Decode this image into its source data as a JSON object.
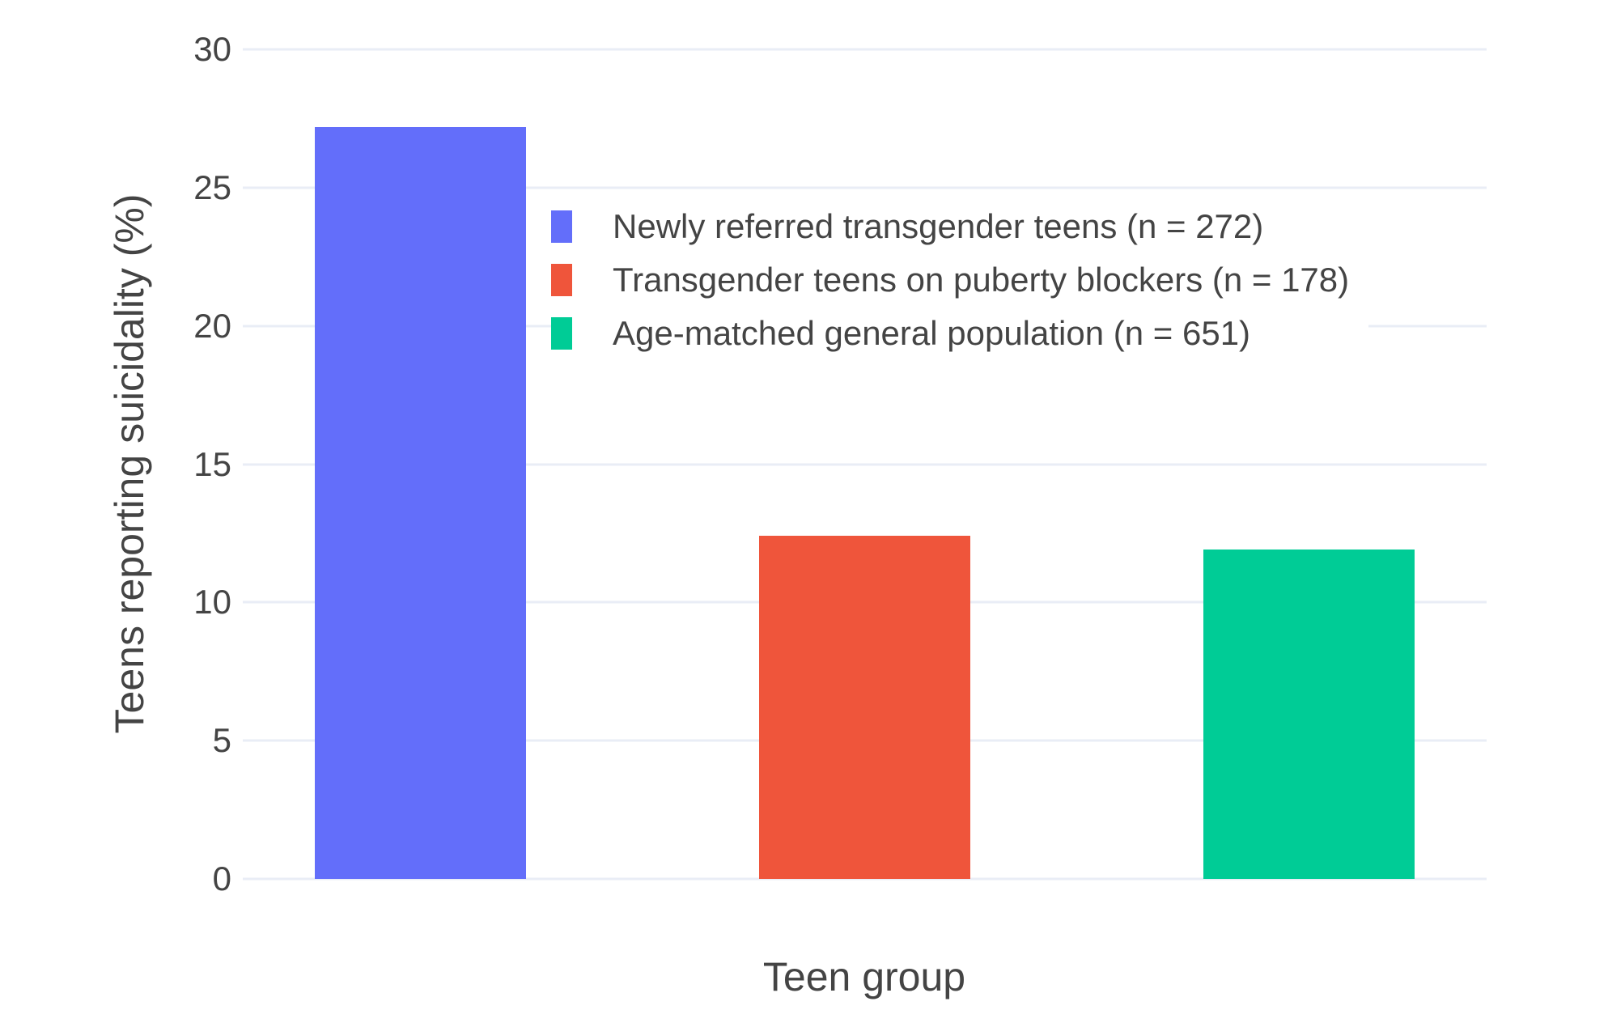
{
  "chart_data": {
    "type": "bar",
    "title": "",
    "xlabel": "Teen group",
    "ylabel": "Teens reporting suicidality (%)",
    "categories": [
      "Newly referred transgender teens (n = 272)",
      "Transgender teens on puberty blockers (n = 178)",
      "Age-matched general population (n = 651)"
    ],
    "series": [
      {
        "name": "Newly referred transgender teens (n = 272)",
        "value": 27.2,
        "color": "#636EFA"
      },
      {
        "name": "Transgender teens on puberty blockers (n = 178)",
        "value": 12.4,
        "color": "#EF553B"
      },
      {
        "name": "Age-matched general population (n = 651)",
        "value": 11.9,
        "color": "#00CC96"
      }
    ],
    "ylim": [
      0,
      30
    ],
    "ytick_step": 5,
    "ytick_labels": [
      "0",
      "5",
      "10",
      "15",
      "20",
      "25",
      "30"
    ],
    "grid": true,
    "legend_position": "inside-top-right"
  },
  "colors": {
    "grid": "#E9EDF6",
    "text": "#444444",
    "background": "#FFFFFF"
  }
}
